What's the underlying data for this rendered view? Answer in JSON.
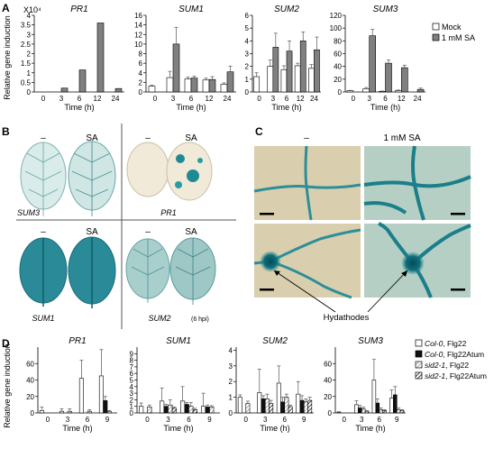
{
  "panels": {
    "a": "A",
    "b": "B",
    "c": "C",
    "d": "D"
  },
  "ylabel": "Relative gene induction",
  "xlabel": "Time (h)",
  "panel_a_multiplier": "X10⁴",
  "legend_a": {
    "mock": "Mock",
    "sa": "1 mM SA"
  },
  "legend_d": [
    {
      "italic": "Col-0",
      "rest": ", Flg22"
    },
    {
      "italic": "Col-0",
      "rest": ", Flg22Atum"
    },
    {
      "italic": "sid2-1",
      "rest": ", Flg22"
    },
    {
      "italic": "sid2-1",
      "rest": ", Flg22Atum"
    }
  ],
  "panel_b": {
    "minus": "–",
    "sa": "SA",
    "labels": {
      "sum3": "SUM3",
      "pr1": "PR1",
      "sum1": "SUM1",
      "sum2": "SUM2",
      "sum2_note": "(6 hpi)"
    }
  },
  "panel_c": {
    "minus": "–",
    "sa": "1 mM SA",
    "hydathodes": "Hydathodes"
  },
  "colors": {
    "mock": "#ffffff",
    "sa": "#808080",
    "col_flg22atum": "#111111",
    "blue": "#1f8a94"
  },
  "chart_data": [
    {
      "type": "bar",
      "panel": "A",
      "title": "PR1",
      "categories": [
        "0",
        "3",
        "6",
        "12",
        "24"
      ],
      "ylim": [
        0,
        4
      ],
      "yticks": [
        0,
        0.5,
        1,
        1.5,
        2,
        2.5,
        3,
        3.5,
        4
      ],
      "yticklabels": [
        "0",
        "0.5",
        "1",
        "1.5",
        "2",
        "2.5",
        "3",
        "3.5",
        "4"
      ],
      "series": [
        {
          "name": "Mock",
          "values": [
            0,
            0,
            0,
            0,
            0
          ],
          "errors": [
            0,
            0,
            0,
            0,
            0
          ]
        },
        {
          "name": "1 mM SA",
          "values": [
            0,
            0.2,
            1.15,
            3.6,
            0.18
          ],
          "errors": [
            0,
            0,
            0,
            0,
            0
          ]
        }
      ]
    },
    {
      "type": "bar",
      "panel": "A",
      "title": "SUM1",
      "categories": [
        "0",
        "3",
        "6",
        "12",
        "24"
      ],
      "ylim": [
        0,
        16
      ],
      "yticks": [
        0,
        2,
        4,
        6,
        8,
        10,
        12,
        14,
        16
      ],
      "yticklabels": [
        "0",
        "2",
        "4",
        "6",
        "8",
        "10",
        "12",
        "14",
        "16"
      ],
      "series": [
        {
          "name": "Mock",
          "values": [
            1.2,
            3.0,
            2.7,
            2.5,
            1.6
          ],
          "errors": [
            0.2,
            1.3,
            0.4,
            0.4,
            0.3
          ]
        },
        {
          "name": "1 mM SA",
          "values": [
            0,
            10.0,
            2.9,
            2.6,
            4.2
          ],
          "errors": [
            0,
            3.5,
            0.4,
            0.6,
            1.2
          ]
        }
      ]
    },
    {
      "type": "bar",
      "panel": "A",
      "title": "SUM2",
      "categories": [
        "0",
        "3",
        "6",
        "12",
        "24"
      ],
      "ylim": [
        0,
        6
      ],
      "yticks": [
        0,
        1,
        2,
        3,
        4,
        5,
        6
      ],
      "yticklabels": [
        "0",
        "1",
        "2",
        "3",
        "4",
        "5",
        "6"
      ],
      "series": [
        {
          "name": "Mock",
          "values": [
            1.2,
            2.0,
            1.75,
            2.05,
            1.85
          ],
          "errors": [
            0.3,
            0.5,
            0.3,
            0.2,
            0.3
          ]
        },
        {
          "name": "1 mM SA",
          "values": [
            0,
            3.5,
            3.2,
            4.0,
            3.3
          ],
          "errors": [
            0,
            1.1,
            0.8,
            0.7,
            1.0
          ]
        }
      ]
    },
    {
      "type": "bar",
      "panel": "A",
      "title": "SUM3",
      "categories": [
        "0",
        "3",
        "6",
        "12",
        "24"
      ],
      "ylim": [
        0,
        120
      ],
      "yticks": [
        0,
        20,
        40,
        60,
        80,
        100,
        120
      ],
      "yticklabels": [
        "0",
        "20",
        "40",
        "60",
        "80",
        "100",
        "120"
      ],
      "series": [
        {
          "name": "Mock",
          "values": [
            2,
            5,
            1,
            2,
            0
          ],
          "errors": [
            0.5,
            2,
            0.5,
            1,
            0
          ]
        },
        {
          "name": "1 mM SA",
          "values": [
            0,
            88,
            45,
            38,
            4
          ],
          "errors": [
            0,
            10,
            5,
            4,
            2
          ]
        }
      ]
    },
    {
      "type": "bar",
      "panel": "D",
      "title": "PR1",
      "categories": [
        "0",
        "3",
        "6",
        "9"
      ],
      "ylim": [
        0,
        80
      ],
      "yticks": [
        0,
        20,
        40,
        60
      ],
      "yticklabels": [
        "0",
        "20",
        "40",
        "60"
      ],
      "series": [
        {
          "name": "Col-0, Flg22",
          "values": [
            3,
            2,
            42,
            45
          ],
          "errors": [
            4,
            3,
            22,
            32
          ]
        },
        {
          "name": "Col-0, Flg22Atum",
          "values": [
            0,
            0,
            0,
            15
          ],
          "errors": [
            0,
            0,
            0,
            5
          ]
        },
        {
          "name": "sid2-1, Flg22",
          "values": [
            0,
            2,
            2,
            2
          ],
          "errors": [
            0,
            3,
            2,
            1
          ]
        },
        {
          "name": "sid2-1, Flg22Atum",
          "values": [
            0,
            0,
            0,
            0
          ],
          "errors": [
            0,
            0,
            0,
            0
          ]
        }
      ]
    },
    {
      "type": "bar",
      "panel": "D",
      "title": "SUM1",
      "categories": [
        "0",
        "3",
        "6",
        "9"
      ],
      "ylim": [
        0,
        10
      ],
      "yticks": [
        0,
        1,
        2,
        3,
        4,
        5,
        6,
        7,
        8,
        9
      ],
      "yticklabels": [
        "0",
        "1",
        "2",
        "3",
        "4",
        "5",
        "6",
        "7",
        "8",
        "9"
      ],
      "series": [
        {
          "name": "Col-0, Flg22",
          "values": [
            1.0,
            1.8,
            1.8,
            1.0
          ],
          "errors": [
            0.5,
            2.0,
            2.2,
            2.0
          ]
        },
        {
          "name": "Col-0, Flg22Atum",
          "values": [
            0,
            1.0,
            1.3,
            0.9
          ],
          "errors": [
            0,
            0.3,
            0.3,
            0.3
          ]
        },
        {
          "name": "sid2-1, Flg22",
          "values": [
            0.9,
            1.2,
            1.0,
            0.9
          ],
          "errors": [
            0.3,
            0.8,
            0.6,
            0.2
          ]
        },
        {
          "name": "sid2-1, Flg22Atum",
          "values": [
            0,
            0.7,
            0.5,
            0
          ],
          "errors": [
            0,
            0.2,
            0.2,
            0
          ]
        }
      ]
    },
    {
      "type": "bar",
      "panel": "D",
      "title": "SUM2",
      "categories": [
        "0",
        "3",
        "6",
        "9"
      ],
      "ylim": [
        0,
        4.2
      ],
      "yticks": [
        0,
        1,
        2,
        3,
        4
      ],
      "yticklabels": [
        "0",
        "1",
        "2",
        "3",
        "4"
      ],
      "series": [
        {
          "name": "Col-0, Flg22",
          "values": [
            1.0,
            1.3,
            1.9,
            1.2
          ],
          "errors": [
            0.15,
            1.5,
            1.1,
            0.8
          ]
        },
        {
          "name": "Col-0, Flg22Atum",
          "values": [
            0,
            0.9,
            0.7,
            0.8
          ],
          "errors": [
            0,
            0.2,
            0.3,
            0.3
          ]
        },
        {
          "name": "sid2-1, Flg22",
          "values": [
            0.6,
            0.9,
            1.0,
            0.7
          ],
          "errors": [
            0.15,
            0.3,
            0.2,
            0.2
          ]
        },
        {
          "name": "sid2-1, Flg22Atum",
          "values": [
            0,
            0.6,
            0.4,
            0.8
          ],
          "errors": [
            0,
            0.2,
            0.1,
            0.2
          ]
        }
      ]
    },
    {
      "type": "bar",
      "panel": "D",
      "title": "SUM3",
      "categories": [
        "0",
        "3",
        "6",
        "9"
      ],
      "ylim": [
        0,
        80
      ],
      "yticks": [
        0,
        20,
        40,
        60
      ],
      "yticklabels": [
        "0",
        "20",
        "40",
        "60"
      ],
      "series": [
        {
          "name": "Col-0, Flg22",
          "values": [
            1,
            10,
            40,
            18
          ],
          "errors": [
            0.5,
            5,
            25,
            10
          ]
        },
        {
          "name": "Col-0, Flg22Atum",
          "values": [
            0,
            6,
            12,
            22
          ],
          "errors": [
            0,
            3,
            5,
            10
          ]
        },
        {
          "name": "sid2-1, Flg22",
          "values": [
            0,
            5,
            4,
            4
          ],
          "errors": [
            0,
            2,
            2,
            2
          ]
        },
        {
          "name": "sid2-1, Flg22Atum",
          "values": [
            0,
            2,
            3,
            3
          ],
          "errors": [
            0,
            1,
            1,
            1
          ]
        }
      ]
    }
  ]
}
